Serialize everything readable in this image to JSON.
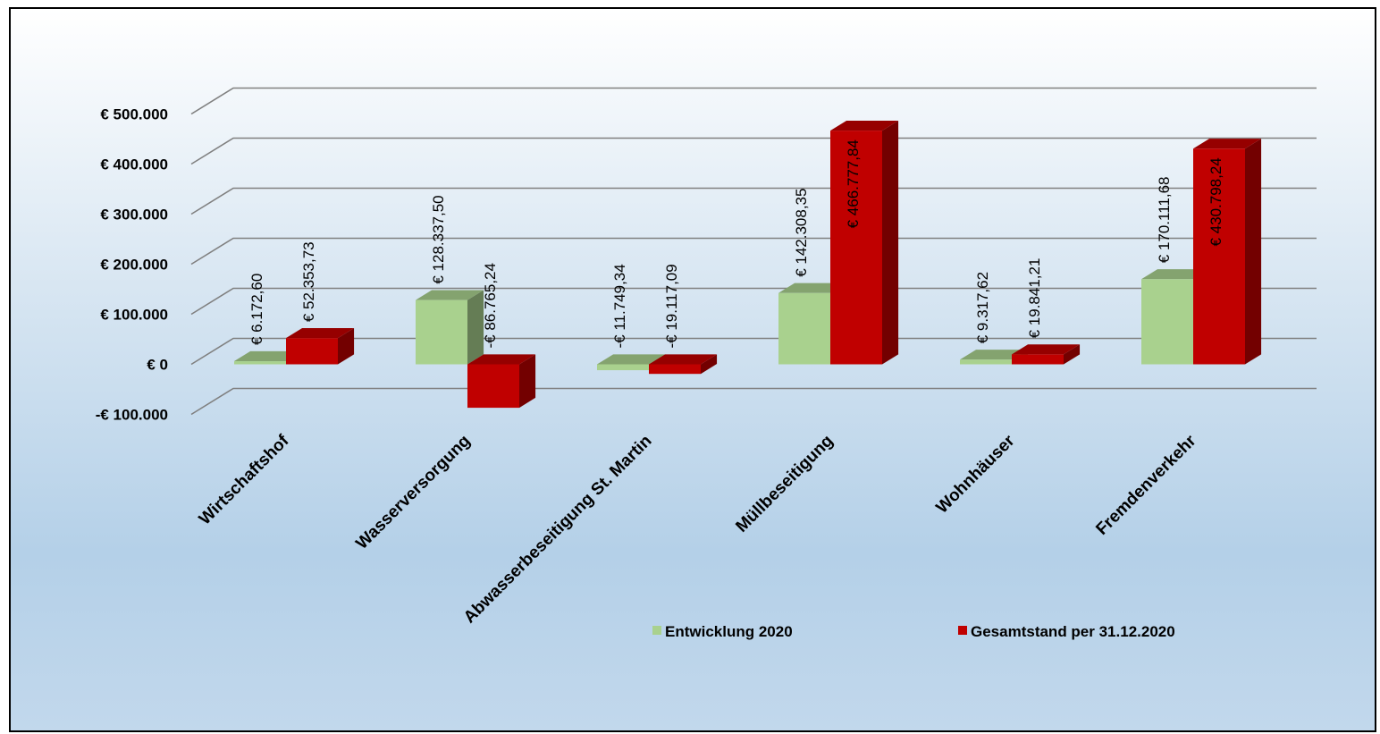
{
  "chart_data": {
    "type": "bar",
    "categories": [
      "Wirtschaftshof",
      "Wasserversorgung",
      "Abwasserbeseitigung St. Martin",
      "Müllbeseitigung",
      "Wohnhäuser",
      "Fremdenverkehr"
    ],
    "series": [
      {
        "name": "Entwicklung 2020",
        "color": "#a9d18e",
        "values": [
          6172.6,
          128337.5,
          -11749.34,
          142308.35,
          9317.62,
          170111.68
        ],
        "labels": [
          "€ 6.172,60",
          "€ 128.337,50",
          "-€ 11.749,34",
          "€ 142.308,35",
          "€ 9.317,62",
          "€ 170.111,68"
        ]
      },
      {
        "name": "Gesamtstand per 31.12.2020",
        "color": "#c00000",
        "values": [
          52353.73,
          -86765.24,
          -19117.09,
          466777.84,
          19841.21,
          430798.24
        ],
        "labels": [
          "€ 52.353,73",
          "-€ 86.765,24",
          "-€ 19.117,09",
          "€ 466.777,84",
          "€ 19.841,21",
          "€ 430.798,24"
        ]
      }
    ],
    "yticks": [
      {
        "value": 500000,
        "label": "€ 500.000"
      },
      {
        "value": 400000,
        "label": "€ 400.000"
      },
      {
        "value": 300000,
        "label": "€ 300.000"
      },
      {
        "value": 200000,
        "label": "€ 200.000"
      },
      {
        "value": 100000,
        "label": "€ 100.000"
      },
      {
        "value": 0,
        "label": "€ 0"
      },
      {
        "value": -100000,
        "label": "-€ 100.000"
      }
    ],
    "ylim": [
      -100000,
      500000
    ],
    "grid": true,
    "style": "3d-clustered-column",
    "legend_position": "bottom-right",
    "title": "",
    "xlabel": "",
    "ylabel": ""
  }
}
